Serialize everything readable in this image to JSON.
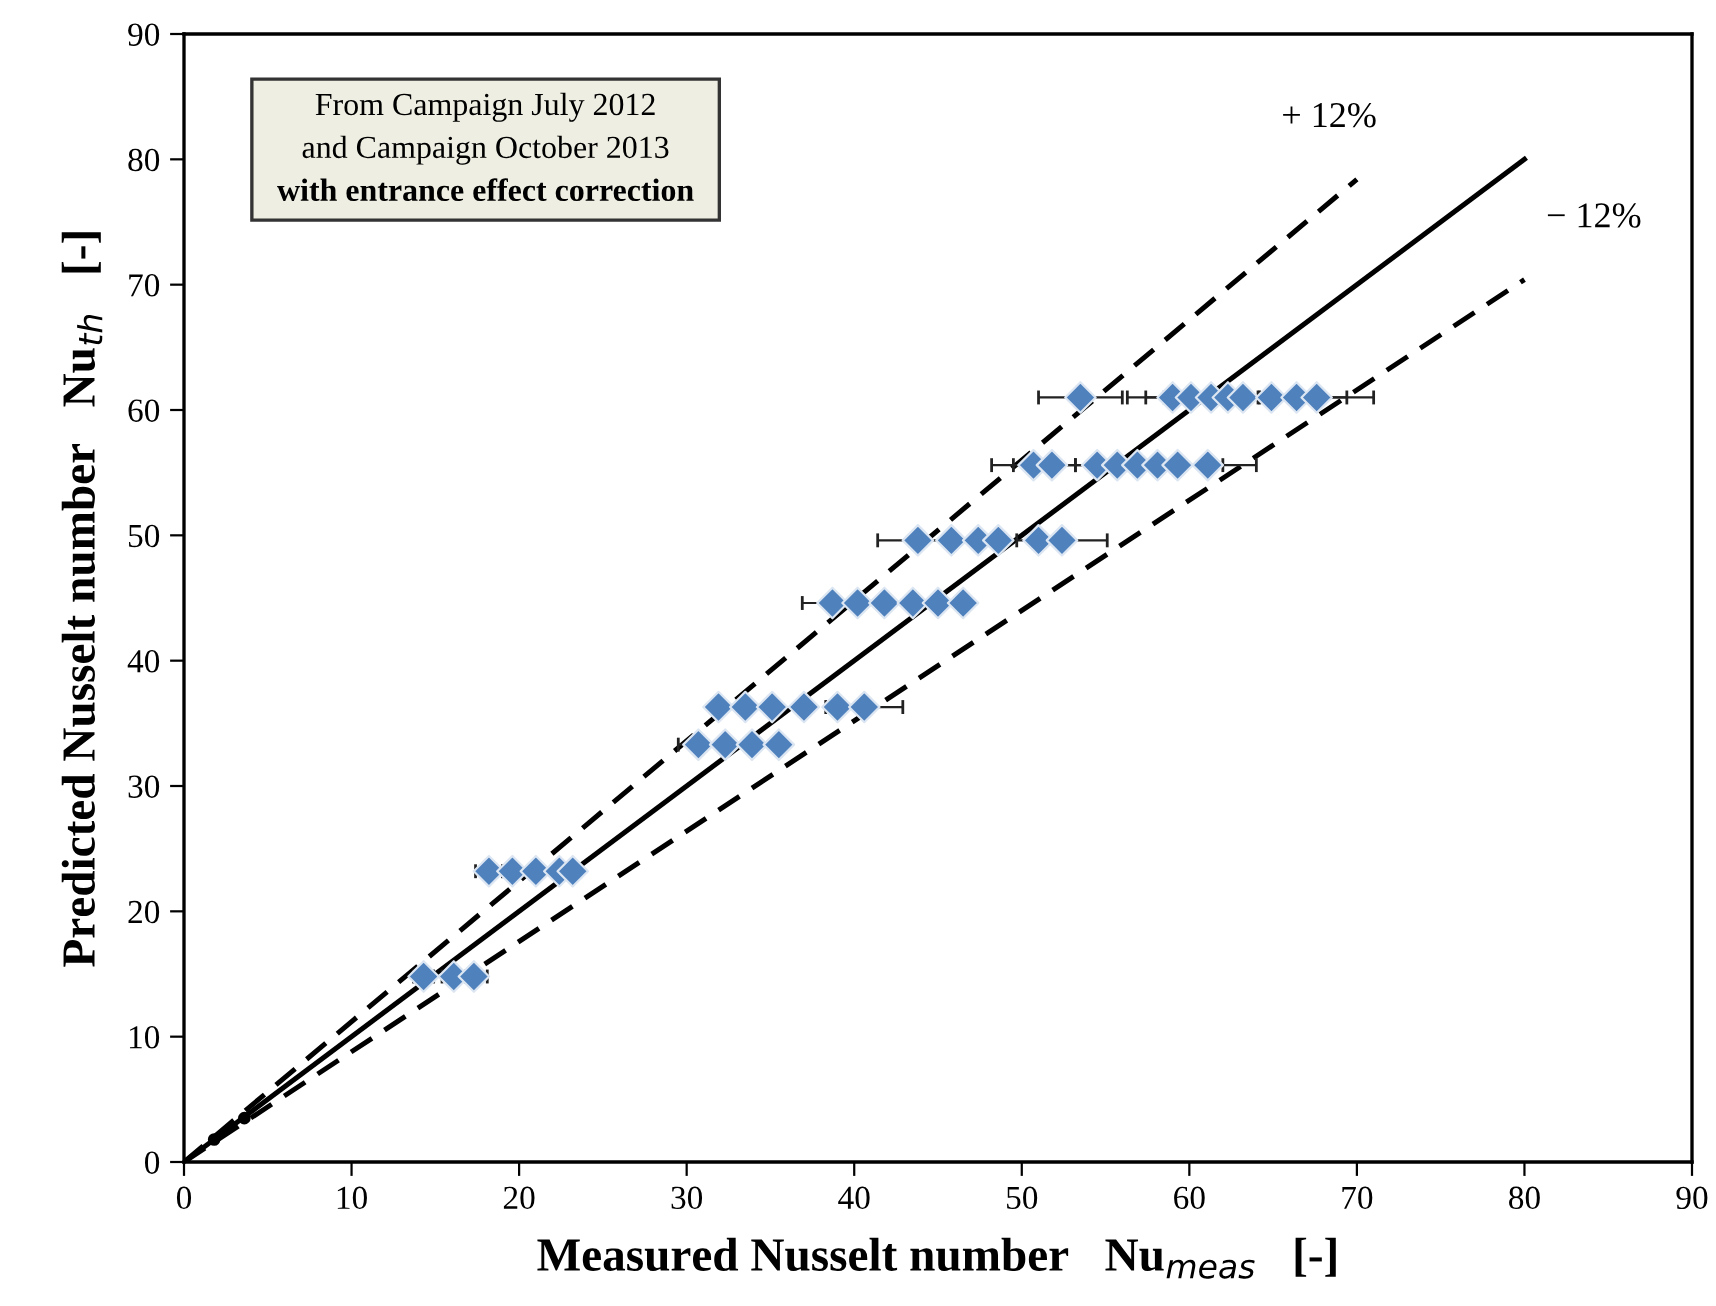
{
  "chart_data": {
    "type": "scatter",
    "xlabel": "Measured Nusselt number   Nu$_{meas}$   [-]",
    "ylabel": "Predicted Nusselt number   Nu$_{th}$   [-]",
    "xlim": [
      0,
      90
    ],
    "ylim": [
      0,
      90
    ],
    "xticks": [
      0,
      10,
      20,
      30,
      40,
      50,
      60,
      70,
      80,
      90
    ],
    "yticks": [
      0,
      10,
      20,
      30,
      40,
      50,
      60,
      70,
      80,
      90
    ],
    "grid": false,
    "legend": false,
    "series": [
      {
        "color": "#4f81bd",
        "marker": "diamond",
        "x": [
          53.5,
          59.0,
          60.1,
          61.3,
          62.3,
          63.2,
          64.9,
          66.4,
          67.6,
          50.7,
          51.8,
          54.5,
          55.7,
          56.9,
          58.1,
          59.3,
          61.1,
          43.8,
          45.8,
          47.4,
          48.6,
          51.0,
          52.4,
          38.7,
          40.2,
          41.8,
          43.5,
          45.0,
          46.5,
          31.9,
          33.5,
          35.1,
          37.0,
          39.0,
          40.6,
          30.7,
          32.3,
          33.9,
          35.5,
          18.2,
          19.6,
          21.0,
          22.4,
          23.2,
          14.3,
          16.1,
          17.3
        ],
        "values": [
          61,
          61,
          61,
          61,
          61,
          61,
          61,
          61,
          61,
          55.6,
          55.6,
          55.6,
          55.6,
          55.6,
          55.6,
          55.6,
          55.6,
          49.6,
          49.6,
          49.6,
          49.6,
          49.6,
          49.6,
          44.6,
          44.6,
          44.6,
          44.6,
          44.6,
          44.6,
          36.3,
          36.3,
          36.3,
          36.3,
          36.3,
          36.3,
          33.3,
          33.3,
          33.3,
          33.3,
          23.2,
          23.2,
          23.2,
          23.2,
          23.2,
          14.8,
          14.8,
          14.8
        ],
        "xerrors": [
          2.5,
          2.7,
          2.7,
          2.8,
          null,
          null,
          null,
          3.0,
          3.4,
          2.5,
          2.3,
          null,
          2.5,
          null,
          null,
          2.7,
          2.9,
          2.4,
          null,
          null,
          null,
          null,
          2.7,
          1.8,
          null,
          null,
          null,
          null,
          null,
          null,
          null,
          null,
          null,
          null,
          2.3,
          1.2,
          null,
          null,
          null,
          0.8,
          null,
          null,
          null,
          null,
          0.6,
          0.7,
          0.8
        ]
      },
      {
        "color": "#000000",
        "marker": "circle",
        "x": [
          1.8,
          3.6
        ],
        "values": [
          1.8,
          3.5
        ]
      },
      {
        "type": "line",
        "color": "#000000",
        "line_style": "solid",
        "x": [
          0,
          80
        ],
        "values": [
          0,
          80
        ]
      },
      {
        "type": "line",
        "color": "#000000",
        "line_style": "dashed",
        "x": [
          0,
          70
        ],
        "values": [
          0,
          78.4
        ]
      },
      {
        "type": "line",
        "color": "#000000",
        "line_style": "dashed",
        "x": [
          0,
          80
        ],
        "values": [
          0,
          70.4
        ]
      }
    ],
    "annotations": [
      "+ 12%",
      "− 12%",
      "From Campaign July 2012",
      "and Campaign October 2013",
      "with entrance effect correction"
    ]
  }
}
